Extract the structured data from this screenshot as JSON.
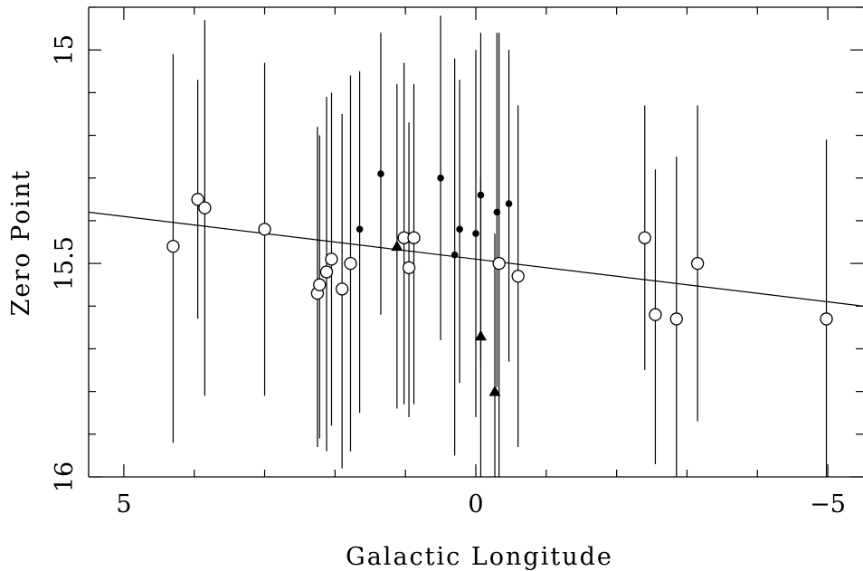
{
  "chart_data": {
    "type": "scatter",
    "xlabel": "Galactic Longitude",
    "ylabel": "Zero Point",
    "xlim": [
      5.5,
      -5.5
    ],
    "ylim": [
      14.9,
      16.0
    ],
    "y_inverted": true,
    "x_ticks": [
      5,
      0,
      -5
    ],
    "x_tick_labels": [
      "5",
      "0",
      "−5"
    ],
    "y_ticks": [
      15.0,
      15.5,
      16.0
    ],
    "y_tick_labels": [
      "15",
      "15.5",
      "16"
    ],
    "grid": false,
    "legend": "none",
    "fit_line": {
      "x": [
        5.5,
        -5.5
      ],
      "y": [
        15.38,
        15.6
      ]
    },
    "series": [
      {
        "marker": "open-circle",
        "points": [
          {
            "x": 4.3,
            "y": 15.46,
            "err_low": 15.01,
            "err_high": 15.92
          },
          {
            "x": 3.95,
            "y": 15.35,
            "err_low": 15.07,
            "err_high": 15.63
          },
          {
            "x": 3.85,
            "y": 15.37,
            "err_low": 14.93,
            "err_high": 15.81
          },
          {
            "x": 3.0,
            "y": 15.42,
            "err_low": 15.03,
            "err_high": 15.81
          },
          {
            "x": 2.25,
            "y": 15.57,
            "err_low": 15.18,
            "err_high": 15.93
          },
          {
            "x": 2.22,
            "y": 15.55,
            "err_low": 15.2,
            "err_high": 15.91
          },
          {
            "x": 2.12,
            "y": 15.52,
            "err_low": 15.11,
            "err_high": 15.94
          },
          {
            "x": 2.05,
            "y": 15.49,
            "err_low": 15.1,
            "err_high": 15.88
          },
          {
            "x": 1.9,
            "y": 15.56,
            "err_low": 15.15,
            "err_high": 15.98
          },
          {
            "x": 1.78,
            "y": 15.5,
            "err_low": 15.06,
            "err_high": 15.94
          },
          {
            "x": 1.02,
            "y": 15.44,
            "err_low": 15.03,
            "err_high": 15.83
          },
          {
            "x": 0.95,
            "y": 15.51,
            "err_low": 15.17,
            "err_high": 15.86
          },
          {
            "x": 0.88,
            "y": 15.44,
            "err_low": 15.08,
            "err_high": 15.83
          },
          {
            "x": -0.33,
            "y": 15.5,
            "err_low": 14.96,
            "err_high": 16.0
          },
          {
            "x": -0.6,
            "y": 15.53,
            "err_low": 15.13,
            "err_high": 15.93
          },
          {
            "x": -2.4,
            "y": 15.44,
            "err_low": 15.13,
            "err_high": 15.75
          },
          {
            "x": -2.55,
            "y": 15.62,
            "err_low": 15.28,
            "err_high": 15.97
          },
          {
            "x": -2.85,
            "y": 15.63,
            "err_low": 15.25,
            "err_high": 16.0
          },
          {
            "x": -3.15,
            "y": 15.5,
            "err_low": 15.13,
            "err_high": 15.87
          },
          {
            "x": -4.98,
            "y": 15.63,
            "err_low": 15.21,
            "err_high": 16.0
          }
        ]
      },
      {
        "marker": "filled-dot",
        "points": [
          {
            "x": 1.35,
            "y": 15.29,
            "err_low": 14.96,
            "err_high": 15.62
          },
          {
            "x": 1.65,
            "y": 15.42,
            "err_low": 15.05,
            "err_high": 15.85
          },
          {
            "x": 0.5,
            "y": 15.3,
            "err_low": 14.92,
            "err_high": 15.68
          },
          {
            "x": 0.3,
            "y": 15.48,
            "err_low": 15.02,
            "err_high": 15.95
          },
          {
            "x": 0.23,
            "y": 15.42,
            "err_low": 15.07,
            "err_high": 15.78
          },
          {
            "x": 0.0,
            "y": 15.43,
            "err_low": 15.0,
            "err_high": 15.86
          },
          {
            "x": -0.07,
            "y": 15.34,
            "err_low": 14.96,
            "err_high": 15.73
          },
          {
            "x": -0.3,
            "y": 15.38,
            "err_low": 14.96,
            "err_high": 15.79
          },
          {
            "x": -0.47,
            "y": 15.36,
            "err_low": 15.0,
            "err_high": 15.73
          }
        ]
      },
      {
        "marker": "filled-triangle",
        "points": [
          {
            "x": 1.12,
            "y": 15.46,
            "err_low": 15.08,
            "err_high": 15.84
          },
          {
            "x": -0.07,
            "y": 15.67,
            "err_low": 15.3,
            "err_high": 16.0
          },
          {
            "x": -0.27,
            "y": 15.8,
            "err_low": 15.43,
            "err_high": 16.0
          }
        ]
      }
    ]
  }
}
